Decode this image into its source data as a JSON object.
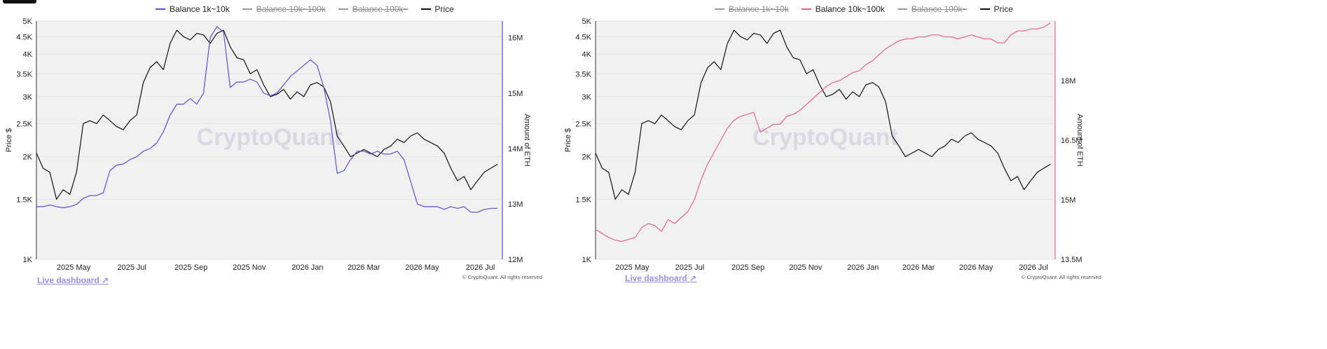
{
  "colors": {
    "price": "#111111",
    "balance_1k_10k": "#5b4fd6",
    "balance_10k_100k": "#e0668f",
    "disabled": "#9a9a9a",
    "plot_bg": "#f1f1f1",
    "link": "#9b8fe6"
  },
  "watermark": "CryptoQuant",
  "live_dashboard": "Live dashboard ↗",
  "copyright": "© CryptoQuant. All rights reserved",
  "chart_data": [
    {
      "type": "line",
      "legend": [
        {
          "label": "Balance 1k~10k",
          "active": true
        },
        {
          "label": "Balance 10k~100k",
          "active": false
        },
        {
          "label": "Balance 100k~",
          "active": false
        },
        {
          "label": "Price",
          "active": true
        }
      ],
      "ylabel": "Price $",
      "y2label": "Amount of ETH",
      "ylim": [
        1000,
        5000
      ],
      "yscale": "log",
      "y_ticks": [
        1000,
        1500,
        2000,
        2500,
        3000,
        3500,
        4000,
        4500,
        5000
      ],
      "y_tick_labels": [
        "1K",
        "1.5K",
        "2K",
        "2.5K",
        "3K",
        "3.5K",
        "4K",
        "4.5K",
        "5K"
      ],
      "y2lim": [
        12000000,
        16300000
      ],
      "y2_ticks": [
        12000000,
        13000000,
        14000000,
        15000000,
        16000000
      ],
      "y2_tick_labels": [
        "12M",
        "13M",
        "14M",
        "15M",
        "16M"
      ],
      "x_ticks": [
        "2025 May",
        "2025 Jul",
        "2025 Sep",
        "2025 Nov",
        "2026 Jan",
        "2026 Mar",
        "2026 May",
        "2026 Jul"
      ],
      "series": [
        {
          "name": "Price",
          "axis": "left",
          "color": "#111111",
          "x": [
            "2025-03-26",
            "2025-04-02",
            "2025-04-09",
            "2025-04-16",
            "2025-04-23",
            "2025-04-30",
            "2025-05-07",
            "2025-05-14",
            "2025-05-21",
            "2025-05-28",
            "2025-06-04",
            "2025-06-11",
            "2025-06-18",
            "2025-06-25",
            "2025-07-02",
            "2025-07-09",
            "2025-07-16",
            "2025-07-23",
            "2025-07-30",
            "2025-08-06",
            "2025-08-13",
            "2025-08-20",
            "2025-08-27",
            "2025-09-03",
            "2025-09-10",
            "2025-09-17",
            "2025-09-24",
            "2025-10-01",
            "2025-10-08",
            "2025-10-15",
            "2025-10-22",
            "2025-10-29",
            "2025-11-05",
            "2025-11-12",
            "2025-11-19",
            "2025-11-26",
            "2025-12-03",
            "2025-12-10",
            "2025-12-17",
            "2025-12-24",
            "2025-12-31",
            "2026-01-07",
            "2026-01-14",
            "2026-01-21",
            "2026-01-28",
            "2026-02-04",
            "2026-02-11",
            "2026-02-18",
            "2026-02-25",
            "2026-03-04",
            "2026-03-11",
            "2026-03-18",
            "2026-03-25",
            "2026-04-01",
            "2026-04-08",
            "2026-04-15",
            "2026-04-22",
            "2026-04-29",
            "2026-05-06",
            "2026-05-13",
            "2026-05-20",
            "2026-05-27",
            "2026-06-03",
            "2026-06-10",
            "2026-06-17",
            "2026-06-24",
            "2026-07-01",
            "2026-07-08",
            "2026-07-15",
            "2026-07-22"
          ],
          "values": [
            2050,
            1850,
            1800,
            1500,
            1600,
            1550,
            1800,
            2500,
            2550,
            2500,
            2650,
            2550,
            2450,
            2400,
            2550,
            2650,
            3300,
            3650,
            3800,
            3600,
            4300,
            4700,
            4500,
            4400,
            4600,
            4550,
            4300,
            4600,
            4700,
            4200,
            3900,
            3850,
            3500,
            3600,
            3250,
            3000,
            3050,
            3150,
            2950,
            3100,
            3000,
            3250,
            3300,
            3200,
            2900,
            2300,
            2150,
            2000,
            2050,
            2100,
            2050,
            2000,
            2100,
            2150,
            2250,
            2200,
            2300,
            2350,
            2250,
            2200,
            2150,
            2050,
            1850,
            1700,
            1750,
            1600,
            1700,
            1800,
            1850,
            1900
          ]
        },
        {
          "name": "Balance 1k~10k",
          "axis": "right",
          "color": "#5b4fd6",
          "x": [
            "2025-03-26",
            "2025-04-02",
            "2025-04-09",
            "2025-04-16",
            "2025-04-23",
            "2025-04-30",
            "2025-05-07",
            "2025-05-14",
            "2025-05-21",
            "2025-05-28",
            "2025-06-04",
            "2025-06-11",
            "2025-06-18",
            "2025-06-25",
            "2025-07-02",
            "2025-07-09",
            "2025-07-16",
            "2025-07-23",
            "2025-07-30",
            "2025-08-06",
            "2025-08-13",
            "2025-08-20",
            "2025-08-27",
            "2025-09-03",
            "2025-09-10",
            "2025-09-17",
            "2025-09-24",
            "2025-10-01",
            "2025-10-08",
            "2025-10-15",
            "2025-10-22",
            "2025-10-29",
            "2025-11-05",
            "2025-11-12",
            "2025-11-19",
            "2025-11-26",
            "2025-12-03",
            "2025-12-10",
            "2025-12-17",
            "2025-12-24",
            "2025-12-31",
            "2026-01-07",
            "2026-01-14",
            "2026-01-21",
            "2026-01-28",
            "2026-02-04",
            "2026-02-11",
            "2026-02-18",
            "2026-02-25",
            "2026-03-04",
            "2026-03-11",
            "2026-03-18",
            "2026-03-25",
            "2026-04-01",
            "2026-04-08",
            "2026-04-15",
            "2026-04-22",
            "2026-04-29",
            "2026-05-06",
            "2026-05-13",
            "2026-05-20",
            "2026-05-27",
            "2026-06-03",
            "2026-06-10",
            "2026-06-17",
            "2026-06-24",
            "2026-07-01",
            "2026-07-08",
            "2026-07-15",
            "2026-07-22"
          ],
          "values": [
            12950000,
            12950000,
            12980000,
            12950000,
            12930000,
            12950000,
            12990000,
            13100000,
            13150000,
            13150000,
            13200000,
            13600000,
            13700000,
            13720000,
            13800000,
            13850000,
            13950000,
            14000000,
            14100000,
            14300000,
            14600000,
            14800000,
            14800000,
            14900000,
            14800000,
            15000000,
            16000000,
            16200000,
            16100000,
            15100000,
            15200000,
            15200000,
            15250000,
            15200000,
            15000000,
            14950000,
            15000000,
            15150000,
            15300000,
            15400000,
            15500000,
            15600000,
            15500000,
            15100000,
            14500000,
            13550000,
            13600000,
            13800000,
            13950000,
            13950000,
            13900000,
            13950000,
            13900000,
            13900000,
            13950000,
            13800000,
            13400000,
            13000000,
            12950000,
            12950000,
            12950000,
            12900000,
            12950000,
            12920000,
            12950000,
            12850000,
            12850000,
            12900000,
            12920000,
            12920000
          ]
        }
      ]
    },
    {
      "type": "line",
      "legend": [
        {
          "label": "Balance 1k~10k",
          "active": false
        },
        {
          "label": "Balance 10k~100k",
          "active": true
        },
        {
          "label": "Balance 100k~",
          "active": false
        },
        {
          "label": "Price",
          "active": true
        }
      ],
      "ylabel": "Price $",
      "y2label": "Amount of ETH",
      "ylim": [
        1000,
        5000
      ],
      "yscale": "log",
      "y_ticks": [
        1000,
        1500,
        2000,
        2500,
        3000,
        3500,
        4000,
        4500,
        5000
      ],
      "y_tick_labels": [
        "1K",
        "1.5K",
        "2K",
        "2.5K",
        "3K",
        "3.5K",
        "4K",
        "4.5K",
        "5K"
      ],
      "y2lim": [
        13500000,
        19500000
      ],
      "y2_ticks": [
        13500000,
        15000000,
        16500000,
        18000000
      ],
      "y2_tick_labels": [
        "13.5M",
        "15M",
        "16.5M",
        "18M"
      ],
      "x_ticks": [
        "2025 May",
        "2025 Jul",
        "2025 Sep",
        "2025 Nov",
        "2026 Jan",
        "2026 Mar",
        "2026 May",
        "2026 Jul"
      ],
      "series": [
        {
          "name": "Price",
          "axis": "left",
          "color": "#111111",
          "x": [
            "2025-03-26",
            "2025-04-02",
            "2025-04-09",
            "2025-04-16",
            "2025-04-23",
            "2025-04-30",
            "2025-05-07",
            "2025-05-14",
            "2025-05-21",
            "2025-05-28",
            "2025-06-04",
            "2025-06-11",
            "2025-06-18",
            "2025-06-25",
            "2025-07-02",
            "2025-07-09",
            "2025-07-16",
            "2025-07-23",
            "2025-07-30",
            "2025-08-06",
            "2025-08-13",
            "2025-08-20",
            "2025-08-27",
            "2025-09-03",
            "2025-09-10",
            "2025-09-17",
            "2025-09-24",
            "2025-10-01",
            "2025-10-08",
            "2025-10-15",
            "2025-10-22",
            "2025-10-29",
            "2025-11-05",
            "2025-11-12",
            "2025-11-19",
            "2025-11-26",
            "2025-12-03",
            "2025-12-10",
            "2025-12-17",
            "2025-12-24",
            "2025-12-31",
            "2026-01-07",
            "2026-01-14",
            "2026-01-21",
            "2026-01-28",
            "2026-02-04",
            "2026-02-11",
            "2026-02-18",
            "2026-02-25",
            "2026-03-04",
            "2026-03-11",
            "2026-03-18",
            "2026-03-25",
            "2026-04-01",
            "2026-04-08",
            "2026-04-15",
            "2026-04-22",
            "2026-04-29",
            "2026-05-06",
            "2026-05-13",
            "2026-05-20",
            "2026-05-27",
            "2026-06-03",
            "2026-06-10",
            "2026-06-17",
            "2026-06-24",
            "2026-07-01",
            "2026-07-08",
            "2026-07-15",
            "2026-07-22"
          ],
          "values": [
            2050,
            1850,
            1800,
            1500,
            1600,
            1550,
            1800,
            2500,
            2550,
            2500,
            2650,
            2550,
            2450,
            2400,
            2550,
            2650,
            3300,
            3650,
            3800,
            3600,
            4300,
            4700,
            4500,
            4400,
            4600,
            4550,
            4300,
            4600,
            4700,
            4200,
            3900,
            3850,
            3500,
            3600,
            3250,
            3000,
            3050,
            3150,
            2950,
            3100,
            3000,
            3250,
            3300,
            3200,
            2900,
            2300,
            2150,
            2000,
            2050,
            2100,
            2050,
            2000,
            2100,
            2150,
            2250,
            2200,
            2300,
            2350,
            2250,
            2200,
            2150,
            2050,
            1850,
            1700,
            1750,
            1600,
            1700,
            1800,
            1850,
            1900
          ]
        },
        {
          "name": "Balance 10k~100k",
          "axis": "right",
          "color": "#e0668f",
          "x": [
            "2025-03-26",
            "2025-04-02",
            "2025-04-09",
            "2025-04-16",
            "2025-04-23",
            "2025-04-30",
            "2025-05-07",
            "2025-05-14",
            "2025-05-21",
            "2025-05-28",
            "2025-06-04",
            "2025-06-11",
            "2025-06-18",
            "2025-06-25",
            "2025-07-02",
            "2025-07-09",
            "2025-07-16",
            "2025-07-23",
            "2025-07-30",
            "2025-08-06",
            "2025-08-13",
            "2025-08-20",
            "2025-08-27",
            "2025-09-03",
            "2025-09-10",
            "2025-09-17",
            "2025-09-24",
            "2025-10-01",
            "2025-10-08",
            "2025-10-15",
            "2025-10-22",
            "2025-10-29",
            "2025-11-05",
            "2025-11-12",
            "2025-11-19",
            "2025-11-26",
            "2025-12-03",
            "2025-12-10",
            "2025-12-17",
            "2025-12-24",
            "2025-12-31",
            "2026-01-07",
            "2026-01-14",
            "2026-01-21",
            "2026-01-28",
            "2026-02-04",
            "2026-02-11",
            "2026-02-18",
            "2026-02-25",
            "2026-03-04",
            "2026-03-11",
            "2026-03-18",
            "2026-03-25",
            "2026-04-01",
            "2026-04-08",
            "2026-04-15",
            "2026-04-22",
            "2026-04-29",
            "2026-05-06",
            "2026-05-13",
            "2026-05-20",
            "2026-05-27",
            "2026-06-03",
            "2026-06-10",
            "2026-06-17",
            "2026-06-24",
            "2026-07-01",
            "2026-07-08",
            "2026-07-15",
            "2026-07-22"
          ],
          "values": [
            14250000,
            14150000,
            14050000,
            13980000,
            13950000,
            14000000,
            14050000,
            14300000,
            14400000,
            14350000,
            14200000,
            14500000,
            14400000,
            14550000,
            14700000,
            15000000,
            15500000,
            15900000,
            16200000,
            16500000,
            16800000,
            17000000,
            17100000,
            17150000,
            17200000,
            16700000,
            16800000,
            16900000,
            16900000,
            17100000,
            17150000,
            17250000,
            17400000,
            17550000,
            17700000,
            17850000,
            17950000,
            18000000,
            18100000,
            18200000,
            18250000,
            18400000,
            18500000,
            18650000,
            18800000,
            18900000,
            19000000,
            19050000,
            19050000,
            19100000,
            19100000,
            19150000,
            19150000,
            19100000,
            19100000,
            19050000,
            19100000,
            19150000,
            19100000,
            19050000,
            19050000,
            18950000,
            18950000,
            19150000,
            19250000,
            19250000,
            19300000,
            19300000,
            19350000,
            19450000
          ]
        }
      ]
    }
  ]
}
